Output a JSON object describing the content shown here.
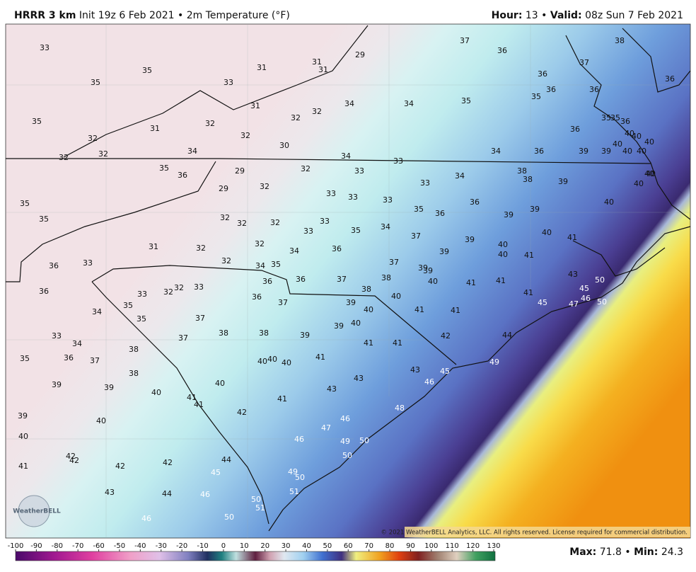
{
  "header": {
    "model": "HRRR 3 km",
    "init": "Init 19z 6 Feb 2021",
    "separator": "•",
    "field": "2m Temperature (°F)",
    "hour_label": "Hour:",
    "hour": 13,
    "valid_label": "Valid:",
    "valid": "08z Sun 7 Feb 2021"
  },
  "map": {
    "labels": [
      33,
      35,
      35,
      31,
      31,
      31,
      29,
      33,
      37,
      36,
      38,
      37,
      36,
      36,
      36,
      36,
      35,
      35,
      34,
      34,
      32,
      32,
      31,
      32,
      31,
      35,
      32,
      32,
      32,
      34,
      32,
      30,
      34,
      33,
      34,
      36,
      36,
      35,
      35,
      36,
      39,
      39,
      40,
      40,
      40,
      40,
      40,
      40,
      35,
      36,
      29,
      29,
      32,
      33,
      33,
      34,
      38,
      38,
      39,
      40,
      40,
      40,
      40,
      32,
      33,
      33,
      33,
      35,
      36,
      36,
      39,
      39,
      35,
      35,
      32,
      32,
      32,
      33,
      33,
      35,
      34,
      37,
      40,
      41,
      31,
      32,
      32,
      34,
      36,
      39,
      39,
      40,
      40,
      41,
      36,
      33,
      32,
      34,
      35,
      37,
      39,
      39,
      36,
      36,
      37,
      38,
      40,
      41,
      41,
      43,
      36,
      33,
      32,
      32,
      33,
      36,
      37,
      38,
      40,
      41,
      45,
      50,
      46,
      47,
      45,
      50,
      35,
      34,
      35,
      37,
      39,
      40,
      41,
      41,
      33,
      34,
      38,
      38,
      39,
      39,
      40,
      42,
      44,
      38,
      35,
      36,
      37,
      40,
      40,
      40,
      41,
      41,
      41,
      38,
      37,
      40,
      43,
      43,
      45,
      49,
      39,
      39,
      40,
      41,
      41,
      41,
      43,
      46,
      39,
      40,
      42,
      48,
      46,
      47,
      40,
      46,
      49,
      50,
      42,
      42,
      41,
      42,
      42,
      44,
      45,
      50,
      49,
      50,
      51,
      43,
      44,
      46,
      50,
      51,
      46,
      50
    ],
    "logo": "WeatherBELL",
    "copyright": "© 2021 WeatherBELL Analytics, LLC. All rights reserved. License required for commercial distribution."
  },
  "colorbar": {
    "ticks": [
      -100,
      -90,
      -80,
      -70,
      -60,
      -50,
      -40,
      -30,
      -20,
      -10,
      0,
      10,
      20,
      30,
      40,
      50,
      60,
      70,
      80,
      90,
      100,
      110,
      120,
      130
    ]
  },
  "footer": {
    "max_label": "Max:",
    "max": 71.8,
    "separator": "•",
    "min_label": "Min:",
    "min": 24.3
  }
}
